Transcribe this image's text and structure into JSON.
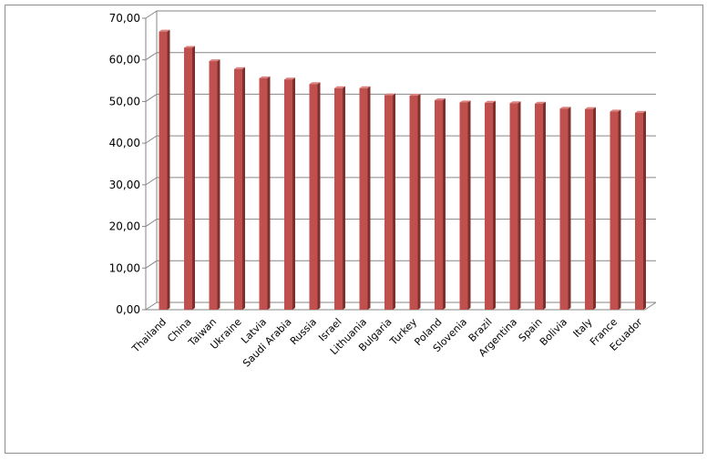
{
  "chart_data": {
    "type": "bar",
    "title": "",
    "xlabel": "",
    "ylabel": "",
    "categories": [
      "Thailand",
      "China",
      "Taiwan",
      "Ukraine",
      "Latvia",
      "Saudi Arabia",
      "Russia",
      "Israel",
      "Lithuania",
      "Bulgaria",
      "Turkey",
      "Poland",
      "Slovenia",
      "Brazil",
      "Argentina",
      "Spain",
      "Bolivia",
      "Italy",
      "France",
      "Ecuador"
    ],
    "values": [
      66.8,
      62.9,
      59.7,
      57.8,
      55.6,
      55.3,
      54.2,
      53.2,
      53.2,
      51.5,
      51.4,
      50.3,
      49.8,
      49.7,
      49.6,
      49.5,
      48.3,
      48.2,
      47.6,
      47.3
    ],
    "ylim": [
      0,
      70
    ],
    "yticks": [
      "0,00",
      "10,00",
      "20,00",
      "30,00",
      "40,00",
      "50,00",
      "60,00",
      "70,00"
    ],
    "grid": true,
    "legend": "none",
    "colors": {
      "bar_front": "#c0504d",
      "bar_side": "#7f2f2c",
      "bar_top": "#d9827f",
      "grid": "#868686",
      "axis": "#868686"
    }
  }
}
